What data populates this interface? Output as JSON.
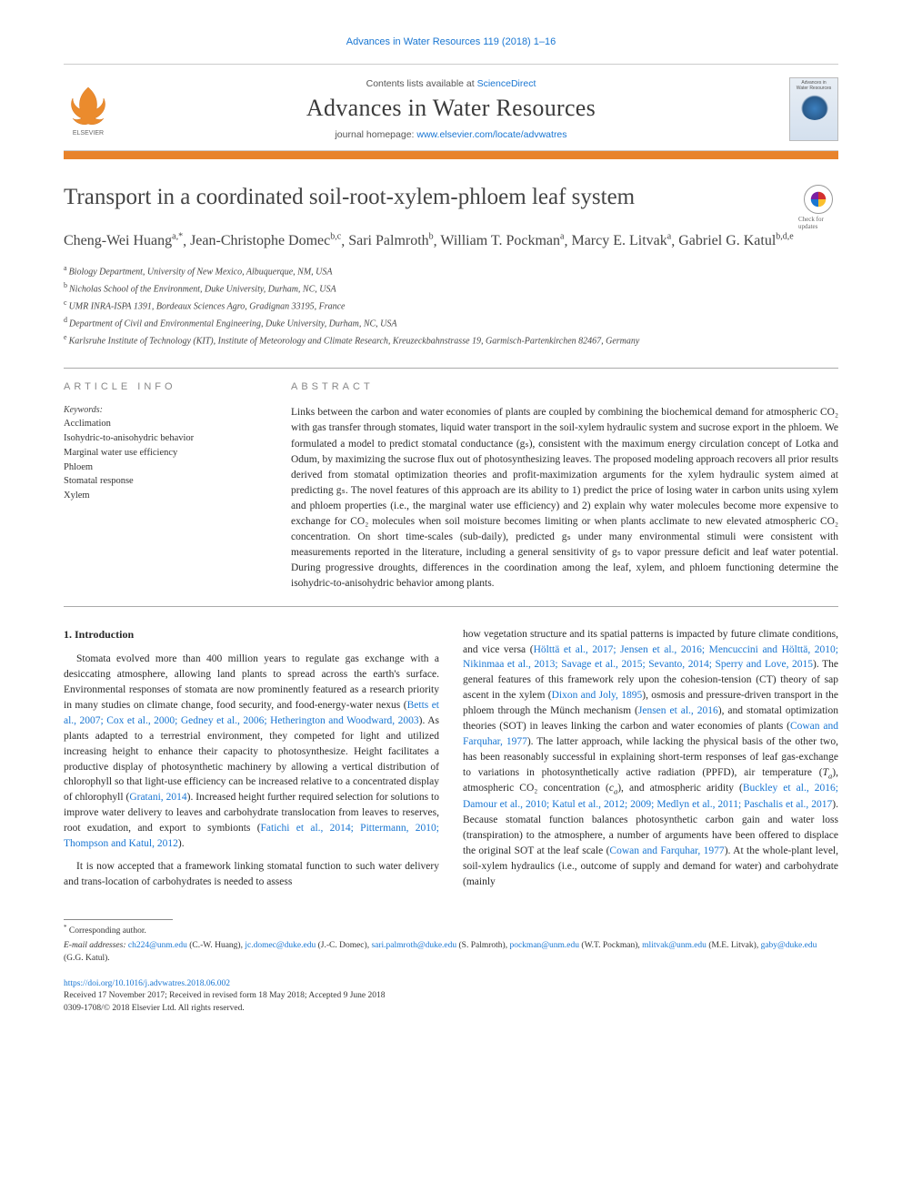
{
  "running_header": "Advances in Water Resources 119 (2018) 1–16",
  "masthead": {
    "contents_prefix": "Contents lists available at ",
    "contents_link": "ScienceDirect",
    "journal_title": "Advances in Water Resources",
    "homepage_prefix": "journal homepage: ",
    "homepage_link": "www.elsevier.com/locate/advwatres",
    "publisher_label": "ELSEVIER",
    "cover_caption_top": "Advances in",
    "cover_caption_bottom": "Water Resources"
  },
  "orange_bar_color": "#e8832c",
  "article": {
    "title": "Transport in a coordinated soil-root-xylem-phloem leaf system",
    "check_badge_label": "Check for updates"
  },
  "authors_line_parts": [
    {
      "name": "Cheng-Wei Huang",
      "marks": "a,*"
    },
    {
      "name": "Jean-Christophe Domec",
      "marks": "b,c"
    },
    {
      "name": "Sari Palmroth",
      "marks": "b"
    },
    {
      "name": "William T. Pockman",
      "marks": "a"
    },
    {
      "name": "Marcy E. Litvak",
      "marks": "a"
    },
    {
      "name": "Gabriel G. Katul",
      "marks": "b,d,e"
    }
  ],
  "affiliations": [
    {
      "mark": "a",
      "text": "Biology Department, University of New Mexico, Albuquerque, NM, USA"
    },
    {
      "mark": "b",
      "text": "Nicholas School of the Environment, Duke University, Durham, NC, USA"
    },
    {
      "mark": "c",
      "text": "UMR INRA-ISPA 1391, Bordeaux Sciences Agro, Gradignan 33195, France"
    },
    {
      "mark": "d",
      "text": "Department of Civil and Environmental Engineering, Duke University, Durham, NC, USA"
    },
    {
      "mark": "e",
      "text": "Karlsruhe Institute of Technology (KIT), Institute of Meteorology and Climate Research, Kreuzeckbahnstrasse 19, Garmisch-Partenkirchen 82467, Germany"
    }
  ],
  "article_info": {
    "label": "article info",
    "keywords_label": "Keywords:",
    "keywords": [
      "Acclimation",
      "Isohydric-to-anisohydric behavior",
      "Marginal water use efficiency",
      "Phloem",
      "Stomatal response",
      "Xylem"
    ]
  },
  "abstract": {
    "label": "abstract",
    "text": "Links between the carbon and water economies of plants are coupled by combining the biochemical demand for atmospheric CO₂ with gas transfer through stomates, liquid water transport in the soil-xylem hydraulic system and sucrose export in the phloem. We formulated a model to predict stomatal conductance (gₛ), consistent with the maximum energy circulation concept of Lotka and Odum, by maximizing the sucrose flux out of photosynthesizing leaves. The proposed modeling approach recovers all prior results derived from stomatal optimization theories and profit-maximization arguments for the xylem hydraulic system aimed at predicting gₛ. The novel features of this approach are its ability to 1) predict the price of losing water in carbon units using xylem and phloem properties (i.e., the marginal water use efficiency) and 2) explain why water molecules become more expensive to exchange for CO₂ molecules when soil moisture becomes limiting or when plants acclimate to new elevated atmospheric CO₂ concentration. On short time-scales (sub-daily), predicted gₛ under many environmental stimuli were consistent with measurements reported in the literature, including a general sensitivity of gₛ to vapor pressure deficit and leaf water potential. During progressive droughts, differences in the coordination among the leaf, xylem, and phloem functioning determine the isohydric-to-anisohydric behavior among plants."
  },
  "intro": {
    "heading": "1. Introduction",
    "p1_a": "Stomata evolved more than 400 million years to regulate gas exchange with a desiccating atmosphere, allowing land plants to spread across the earth's surface. Environmental responses of stomata are now prominently featured as a research priority in many studies on climate change, food security, and food-energy-water nexus (",
    "p1_cite1": "Betts et al., 2007; Cox et al., 2000; Gedney et al., 2006; Hetherington and Woodward, 2003",
    "p1_b": "). As plants adapted to a terrestrial environment, they competed for light and utilized increasing height to enhance their capacity to photosynthesize. Height facilitates a productive display of photosynthetic machinery by allowing a vertical distribution of chlorophyll so that light-use efficiency can be increased relative to a concentrated display of chlorophyll (",
    "p1_cite2": "Gratani, 2014",
    "p1_c": "). Increased height further required selection for solutions to improve water delivery to leaves and carbohydrate translocation from leaves to reserves, root exudation, and export to symbionts (",
    "p1_cite3": "Fatichi et al., 2014; Pittermann, 2010; Thompson and Katul, 2012",
    "p1_d": ").",
    "p2_a": "It is now accepted that a framework linking stomatal function to such water delivery and trans-location of carbohydrates is needed to assess",
    "c2_a": "how vegetation structure and its spatial patterns is impacted by future climate conditions, and vice versa (",
    "c2_cite1": "Hölttä et al., 2017; Jensen et al., 2016; Mencuccini and Hölttä, 2010; Nikinmaa et al., 2013; Savage et al., 2015; Sevanto, 2014; Sperry and Love, 2015",
    "c2_b": "). The general features of this framework rely upon the cohesion-tension (CT) theory of sap ascent in the xylem (",
    "c2_cite2": "Dixon and Joly, 1895",
    "c2_c": "), osmosis and pressure-driven transport in the phloem through the Münch mechanism (",
    "c2_cite3": "Jensen et al., 2016",
    "c2_d": "), and stomatal optimization theories (SOT) in leaves linking the carbon and water economies of plants (",
    "c2_cite4": "Cowan and Farquhar, 1977",
    "c2_e": "). The latter approach, while lacking the physical basis of the other two, has been reasonably successful in explaining short-term responses of leaf gas-exchange to variations in photosynthetically active radiation (PPFD), air temperature (",
    "c2_f": "), atmospheric CO₂ concentration (",
    "c2_g": "), and atmospheric aridity (",
    "c2_cite5": "Buckley et al., 2016; Damour et al., 2010; Katul et al., 2012; 2009; Medlyn et al., 2011; Paschalis et al., 2017",
    "c2_h": "). Because stomatal function balances photosynthetic carbon gain and water loss (transpiration) to the atmosphere, a number of arguments have been offered to displace the original SOT at the leaf scale (",
    "c2_cite6": "Cowan and Farquhar, 1977",
    "c2_i": "). At the whole-plant level, soil-xylem hydraulics (i.e., outcome of supply and demand for water) and carbohydrate (mainly"
  },
  "footer": {
    "corresponding": "Corresponding author.",
    "email_label": "E-mail addresses:",
    "emails": [
      {
        "addr": "ch224@unm.edu",
        "who": "(C.-W. Huang)"
      },
      {
        "addr": "jc.domec@duke.edu",
        "who": "(J.-C. Domec)"
      },
      {
        "addr": "sari.palmroth@duke.edu",
        "who": "(S. Palmroth)"
      },
      {
        "addr": "pockman@unm.edu",
        "who": "(W.T. Pockman)"
      },
      {
        "addr": "mlitvak@unm.edu",
        "who": "(M.E. Litvak)"
      },
      {
        "addr": "gaby@duke.edu",
        "who": "(G.G. Katul)"
      }
    ],
    "doi": "https://doi.org/10.1016/j.advwatres.2018.06.002",
    "history": "Received 17 November 2017; Received in revised form 18 May 2018; Accepted 9 June 2018",
    "copyright": "0309-1708/© 2018 Elsevier Ltd. All rights reserved."
  }
}
